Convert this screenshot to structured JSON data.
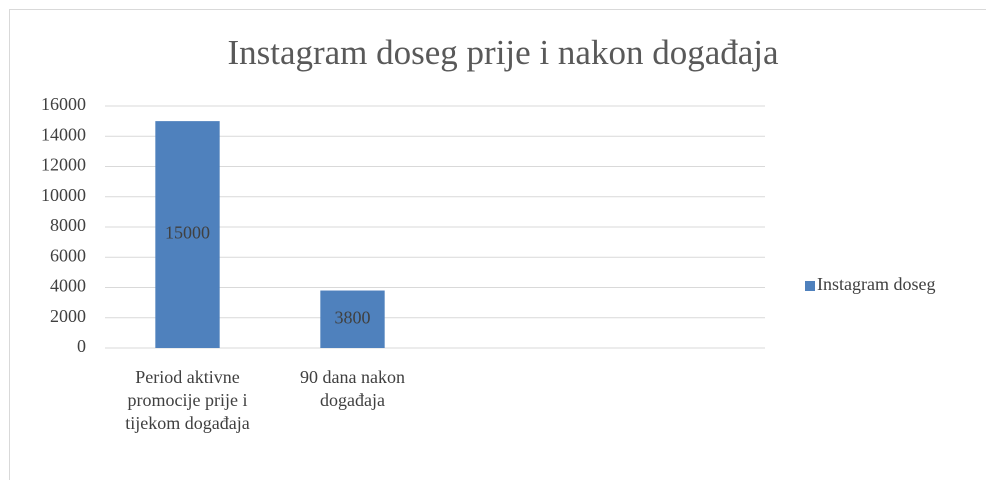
{
  "chart_data": {
    "type": "bar",
    "title": "Instagram doseg prije i nakon događaja",
    "categories": [
      "Period aktivne promocije prije i tijekom događaja",
      "90 dana nakon događaja",
      null,
      null
    ],
    "series": [
      {
        "name": "Instagram doseg",
        "color": "#4f81bd",
        "values": [
          15000,
          3800,
          null,
          null
        ]
      }
    ],
    "ylim": [
      0,
      16000
    ],
    "yticks": [
      0,
      2000,
      4000,
      6000,
      8000,
      10000,
      12000,
      14000,
      16000
    ],
    "grid": true,
    "legend": "right",
    "data_labels": true
  }
}
